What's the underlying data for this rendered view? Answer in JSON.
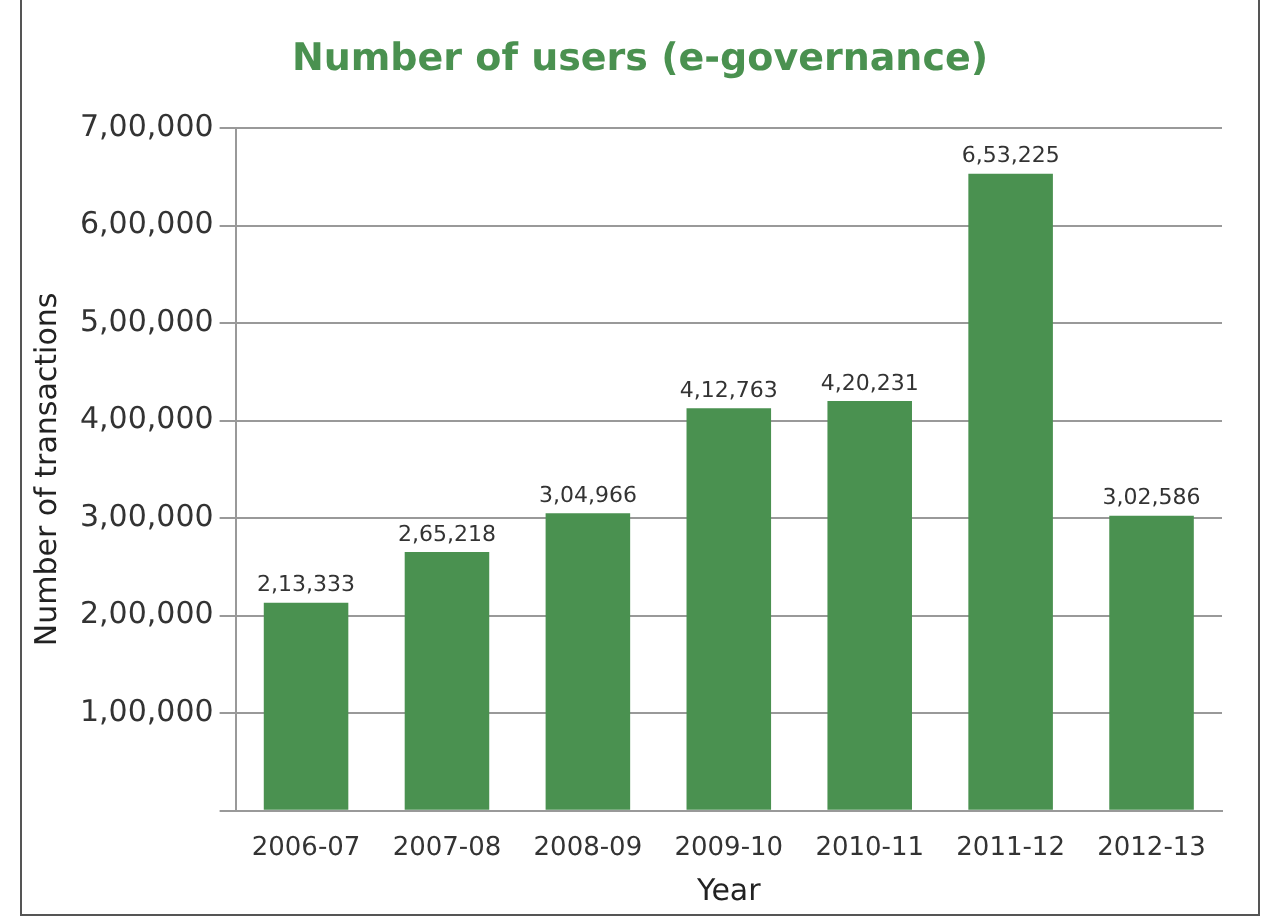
{
  "chart_data": {
    "type": "bar",
    "title": "Number of users (e-governance)",
    "xlabel": "Year",
    "ylabel": "Number of transactions",
    "categories": [
      "2006-07",
      "2007-08",
      "2008-09",
      "2009-10",
      "2010-11",
      "2011-12",
      "2012-13"
    ],
    "values": [
      213333,
      265218,
      304966,
      412763,
      420231,
      653225,
      302586
    ],
    "value_labels": [
      "2,13,333",
      "2,65,218",
      "3,04,966",
      "4,12,763",
      "4,20,231",
      "6,53,225",
      "3,02,586"
    ],
    "color": "#4a9150",
    "ylim": [
      0,
      700000
    ],
    "yticks": [
      {
        "value": 0,
        "label": null
      },
      {
        "value": 100000,
        "label": "1,00,000"
      },
      {
        "value": 200000,
        "label": "2,00,000"
      },
      {
        "value": 300000,
        "label": "3,00,000"
      },
      {
        "value": 400000,
        "label": "4,00,000"
      },
      {
        "value": 500000,
        "label": "5,00,000"
      },
      {
        "value": 600000,
        "label": "6,00,000"
      },
      {
        "value": 700000,
        "label": "7,00,000"
      }
    ],
    "grid": "y",
    "legend": false
  }
}
